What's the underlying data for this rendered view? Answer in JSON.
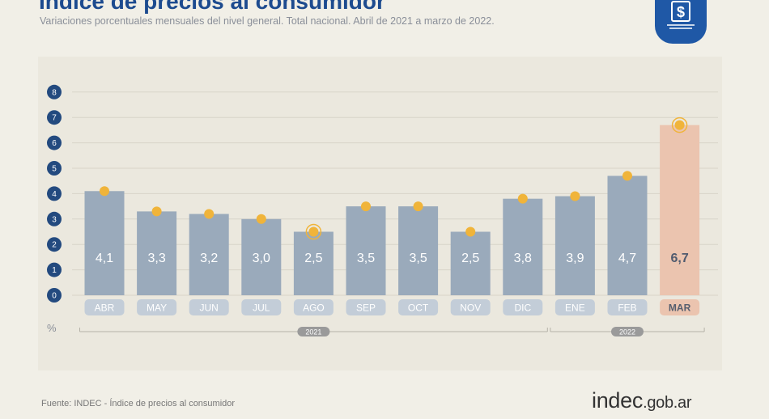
{
  "header": {
    "title": "Índice de precios al consumidor",
    "subtitle": "Variaciones porcentuales mensuales del nivel general. Total nacional. Abril de 2021 a marzo de 2022."
  },
  "footer": {
    "source": "Fuente: INDEC - Índice de precios al consumidor",
    "brand_main": "indec",
    "brand_suffix": ".gob.ar"
  },
  "colors": {
    "bar": "#9aaabb",
    "bar_highlight": "#ebc4af",
    "marker": "#f0b43a",
    "axis_badge": "#234a7f",
    "brand_blue": "#1f58a6"
  },
  "icons": {
    "logo": "dollar-sign-icon",
    "marker": "circle-dot-icon"
  },
  "chart_data": {
    "type": "bar",
    "title": "Índice de precios al consumidor",
    "subtitle": "Variaciones porcentuales mensuales del nivel general. Total nacional. Abril de 2021 a marzo de 2022.",
    "ylabel": "%",
    "ylim": [
      0,
      8
    ],
    "yticks": [
      0,
      1,
      2,
      3,
      4,
      5,
      6,
      7,
      8
    ],
    "categories": [
      "ABR",
      "MAY",
      "JUN",
      "JUL",
      "AGO",
      "SEP",
      "OCT",
      "NOV",
      "DIC",
      "ENE",
      "FEB",
      "MAR"
    ],
    "values": [
      4.1,
      3.3,
      3.2,
      3.0,
      2.5,
      3.5,
      3.5,
      2.5,
      3.8,
      3.9,
      4.7,
      6.7
    ],
    "value_labels": [
      "4,1",
      "3,3",
      "3,2",
      "3,0",
      "2,5",
      "3,5",
      "3,5",
      "2,5",
      "3,8",
      "3,9",
      "4,7",
      "6,7"
    ],
    "highlight": [
      "MAR"
    ],
    "ringed_markers": [
      "AGO",
      "MAR"
    ],
    "year_groups": [
      {
        "label": "2021",
        "from": "ABR",
        "to": "DIC"
      },
      {
        "label": "2022",
        "from": "ENE",
        "to": "MAR"
      }
    ],
    "grid": true
  }
}
